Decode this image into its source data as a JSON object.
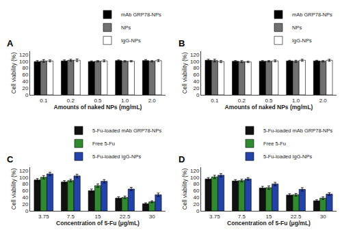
{
  "chart_data": [
    {
      "type": "bar",
      "title": "A",
      "xlabel": "Amounts of naked NPs (mg/mL)",
      "ylabel": "Cell viability (%)",
      "categories": [
        "0.1",
        "0.2",
        "0.5",
        "1.0",
        "2.0"
      ],
      "series": [
        {
          "name": "mAb GRP78-NPs",
          "color": "#000000",
          "values": [
            99,
            101,
            99,
            102,
            102
          ],
          "errors": [
            3,
            3,
            2,
            2,
            3
          ]
        },
        {
          "name": "NPs",
          "color": "#707070",
          "values": [
            101,
            103,
            100,
            100,
            100
          ],
          "errors": [
            4,
            3,
            2,
            2,
            2
          ]
        },
        {
          "name": "IgG-NPs",
          "color": "#ffffff",
          "values": [
            101,
            103,
            101,
            100,
            102
          ],
          "errors": [
            3,
            4,
            3,
            2,
            3
          ]
        }
      ],
      "ylim": [
        0,
        130
      ],
      "yticks": [
        0,
        20,
        40,
        60,
        80,
        100,
        120
      ],
      "grid": false,
      "legend": "upper right"
    },
    {
      "type": "bar",
      "title": "B",
      "xlabel": "Amounts of naked NPs (mg/mL)",
      "ylabel": "Cell viability (%)",
      "categories": [
        "0.1",
        "0.2",
        "0.5",
        "1.0",
        "2.0"
      ],
      "series": [
        {
          "name": "mAb GRP78-NPs",
          "color": "#000000",
          "values": [
            103,
            100,
            100,
            101,
            101
          ],
          "errors": [
            3,
            2,
            2,
            2,
            2
          ]
        },
        {
          "name": "NPs",
          "color": "#707070",
          "values": [
            102,
            99,
            100,
            100,
            100
          ],
          "errors": [
            4,
            3,
            2,
            3,
            2
          ]
        },
        {
          "name": "IgG-NPs",
          "color": "#ffffff",
          "values": [
            99,
            98,
            101,
            103,
            103
          ],
          "errors": [
            3,
            2,
            3,
            3,
            3
          ]
        }
      ],
      "ylim": [
        0,
        130
      ],
      "yticks": [
        0,
        20,
        40,
        60,
        80,
        100,
        120
      ],
      "grid": false,
      "legend": "upper right"
    },
    {
      "type": "bar",
      "title": "C",
      "xlabel": "Concentration of 5-Fu (μg/mL)",
      "ylabel": "Cell viability (%)",
      "categories": [
        "3.75",
        "7.5",
        "15",
        "22.5",
        "30"
      ],
      "series": [
        {
          "name": "5-Fu-loaded mAb GRP78-NPs",
          "color": "#111111",
          "values": [
            92,
            86,
            60,
            38,
            21
          ],
          "errors": [
            4,
            4,
            5,
            4,
            3
          ]
        },
        {
          "name": "Free 5-Fu",
          "color": "#2e8b2e",
          "values": [
            100,
            90,
            75,
            40,
            27
          ],
          "errors": [
            5,
            4,
            5,
            4,
            3
          ]
        },
        {
          "name": "5-Fu-loaded IgG-NPs",
          "color": "#2244aa",
          "values": [
            110,
            104,
            88,
            65,
            48
          ],
          "errors": [
            5,
            5,
            5,
            5,
            5
          ]
        }
      ],
      "ylim": [
        0,
        130
      ],
      "yticks": [
        0,
        20,
        40,
        60,
        80,
        100,
        120
      ],
      "grid": false,
      "legend": "upper right"
    },
    {
      "type": "bar",
      "title": "D",
      "xlabel": "Concentration of 5-Fu (μg/mL)",
      "ylabel": "Cell viability (%)",
      "categories": [
        "3.75",
        "7.5",
        "15",
        "22.5",
        "30"
      ],
      "series": [
        {
          "name": "5-Fu-loaded mAb GRP78-NPs",
          "color": "#111111",
          "values": [
            95,
            89,
            68,
            47,
            30
          ],
          "errors": [
            4,
            4,
            5,
            4,
            3
          ]
        },
        {
          "name": "Free 5-Fu",
          "color": "#2e8b2e",
          "values": [
            101,
            90,
            69,
            48,
            38
          ],
          "errors": [
            5,
            4,
            5,
            4,
            4
          ]
        },
        {
          "name": "5-Fu-loaded IgG-NPs",
          "color": "#2244aa",
          "values": [
            106,
            95,
            80,
            64,
            50
          ],
          "errors": [
            5,
            4,
            5,
            5,
            4
          ]
        }
      ],
      "ylim": [
        0,
        130
      ],
      "yticks": [
        0,
        20,
        40,
        60,
        80,
        100,
        120
      ],
      "grid": false,
      "legend": "upper right"
    }
  ]
}
